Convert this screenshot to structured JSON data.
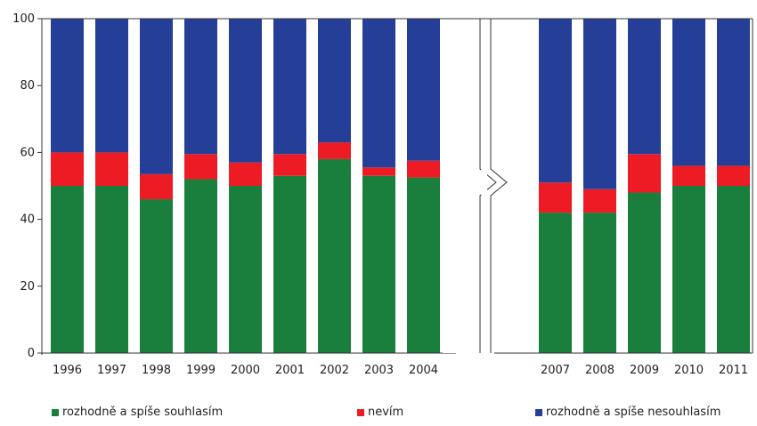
{
  "chart_data": {
    "type": "bar",
    "stacked": true,
    "ylim": [
      0,
      100
    ],
    "yticks": [
      "0",
      "20",
      "40",
      "60",
      "80",
      "100"
    ],
    "grid": false,
    "legend_position": "bottom",
    "axis_break_between": [
      "2004",
      "2007"
    ],
    "categories": [
      "1996",
      "1997",
      "1998",
      "1999",
      "2000",
      "2001",
      "2002",
      "2003",
      "2004",
      "2007",
      "2008",
      "2009",
      "2010",
      "2011"
    ],
    "series": [
      {
        "name": "rozhodně a spíše souhlasím",
        "color": "#1a7f3c",
        "values": [
          50,
          50,
          46,
          52,
          50,
          53,
          58,
          53,
          52.5,
          42,
          42,
          48,
          50,
          50
        ]
      },
      {
        "name": "nevím",
        "color": "#ed1c24",
        "values": [
          10,
          10,
          7.5,
          7.5,
          7,
          6.5,
          5,
          2.5,
          5,
          9,
          7,
          11.5,
          6,
          6
        ]
      },
      {
        "name": "rozhodně a spíše nesouhlasím",
        "color": "#253f98",
        "values": [
          40,
          40,
          46.5,
          40.5,
          43,
          40.5,
          37,
          44.5,
          42.5,
          49,
          51,
          40.5,
          44,
          44
        ]
      }
    ]
  }
}
